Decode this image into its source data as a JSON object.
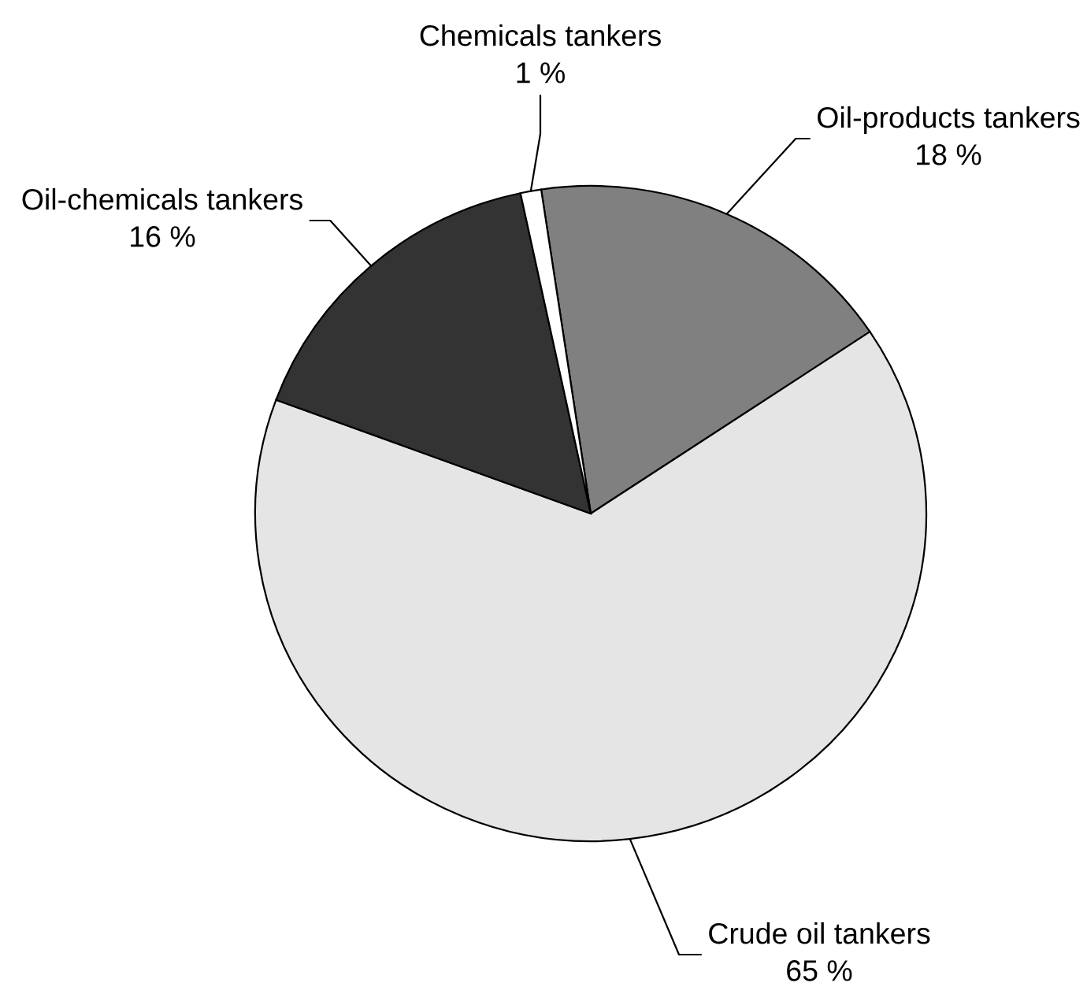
{
  "chart_data": {
    "type": "pie",
    "categories": [
      "Oil-products tankers",
      "Crude oil tankers",
      "Oil-chemicals tankers",
      "Chemicals tankers"
    ],
    "values": [
      18,
      65,
      16,
      1
    ],
    "colors": [
      "#808080",
      "#e5e5e5",
      "#333333",
      "#ffffff"
    ],
    "value_labels": [
      "18 %",
      "65 %",
      "16 %",
      "1 %"
    ]
  }
}
